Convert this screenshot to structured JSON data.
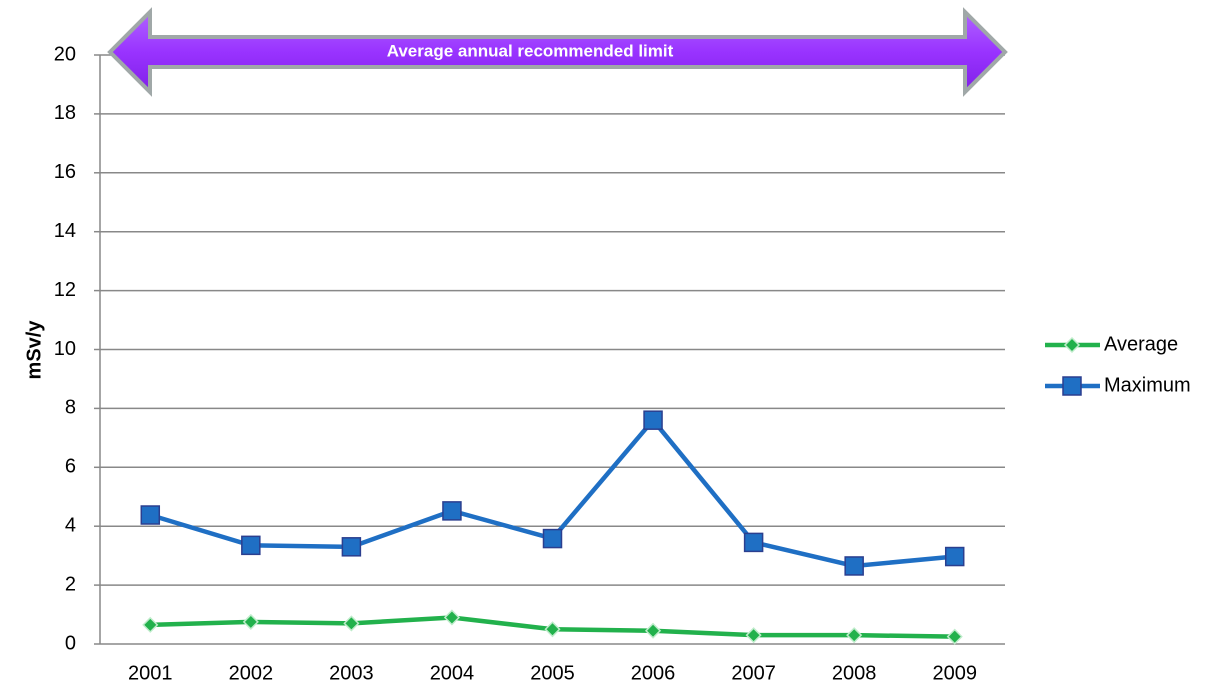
{
  "chart_data": {
    "type": "line",
    "y_label": "mSv/y",
    "annotation": "Average annual recommended limit",
    "categories": [
      "2001",
      "2002",
      "2003",
      "2004",
      "2005",
      "2006",
      "2007",
      "2008",
      "2009"
    ],
    "series": [
      {
        "name": "Average",
        "color": "#22b14c",
        "marker": "diamond",
        "values": [
          0.65,
          0.75,
          0.7,
          0.9,
          0.5,
          0.45,
          0.3,
          0.3,
          0.25
        ]
      },
      {
        "name": "Maximum",
        "color": "#1f6fc4",
        "marker": "square",
        "values": [
          4.38,
          3.35,
          3.3,
          4.52,
          3.58,
          7.6,
          3.45,
          2.65,
          2.97
        ]
      }
    ],
    "ylim": [
      0,
      20
    ],
    "yticks": [
      0,
      2,
      4,
      6,
      8,
      10,
      12,
      14,
      16,
      18,
      20
    ],
    "grid": true,
    "legend": "right"
  }
}
